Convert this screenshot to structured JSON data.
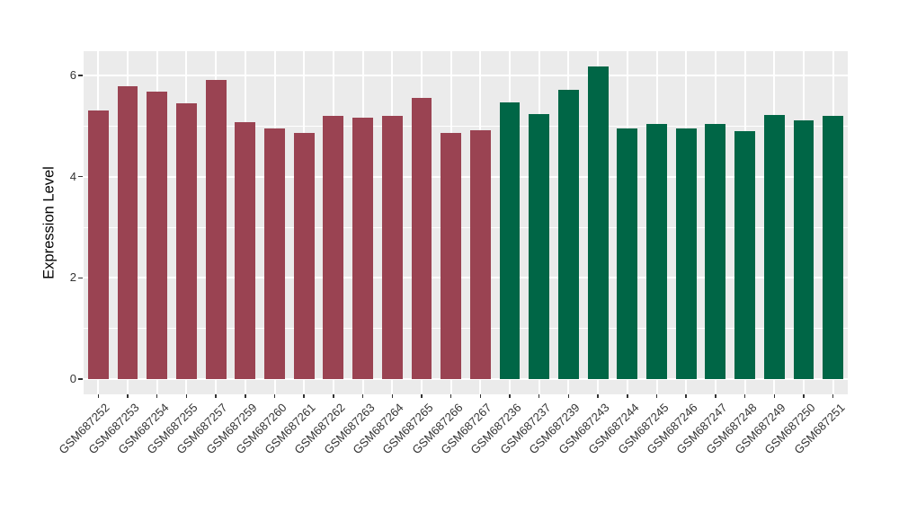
{
  "chart_data": {
    "type": "bar",
    "title": "",
    "xlabel": "",
    "ylabel": "Expression Level",
    "ylim": [
      0,
      6.5
    ],
    "yticks": [
      0,
      2,
      4,
      6
    ],
    "minor_yticks": [
      1,
      3,
      5
    ],
    "grid": "white major and minor horizontal gridlines plus vertical gridlines at bar centers on gray panel",
    "legend_position": "none",
    "bar_width_fraction": 0.7,
    "series": [
      {
        "name": "group-red",
        "color": "#9A4352",
        "categories": [
          "GSM687252",
          "GSM687253",
          "GSM687254",
          "GSM687255",
          "GSM687257",
          "GSM687259",
          "GSM687260",
          "GSM687261",
          "GSM687262",
          "GSM687263",
          "GSM687264",
          "GSM687265",
          "GSM687266",
          "GSM687267"
        ],
        "values": [
          5.3,
          5.79,
          5.68,
          5.45,
          5.92,
          5.08,
          4.95,
          4.86,
          5.2,
          5.17,
          5.2,
          5.55,
          4.87,
          4.92
        ]
      },
      {
        "name": "group-green",
        "color": "#006646",
        "categories": [
          "GSM687236",
          "GSM687237",
          "GSM687239",
          "GSM687243",
          "GSM687244",
          "GSM687245",
          "GSM687246",
          "GSM687247",
          "GSM687248",
          "GSM687249",
          "GSM687250",
          "GSM687251"
        ],
        "values": [
          5.46,
          5.23,
          5.71,
          6.17,
          4.96,
          5.05,
          4.95,
          5.04,
          4.9,
          5.22,
          5.11,
          5.21
        ]
      }
    ],
    "colors": {
      "panel_background": "#EBEBEB",
      "gridline": "#FFFFFF",
      "axis_text": "#333333",
      "axis_title": "#000000",
      "figure_background": "#FFFFFF"
    }
  }
}
